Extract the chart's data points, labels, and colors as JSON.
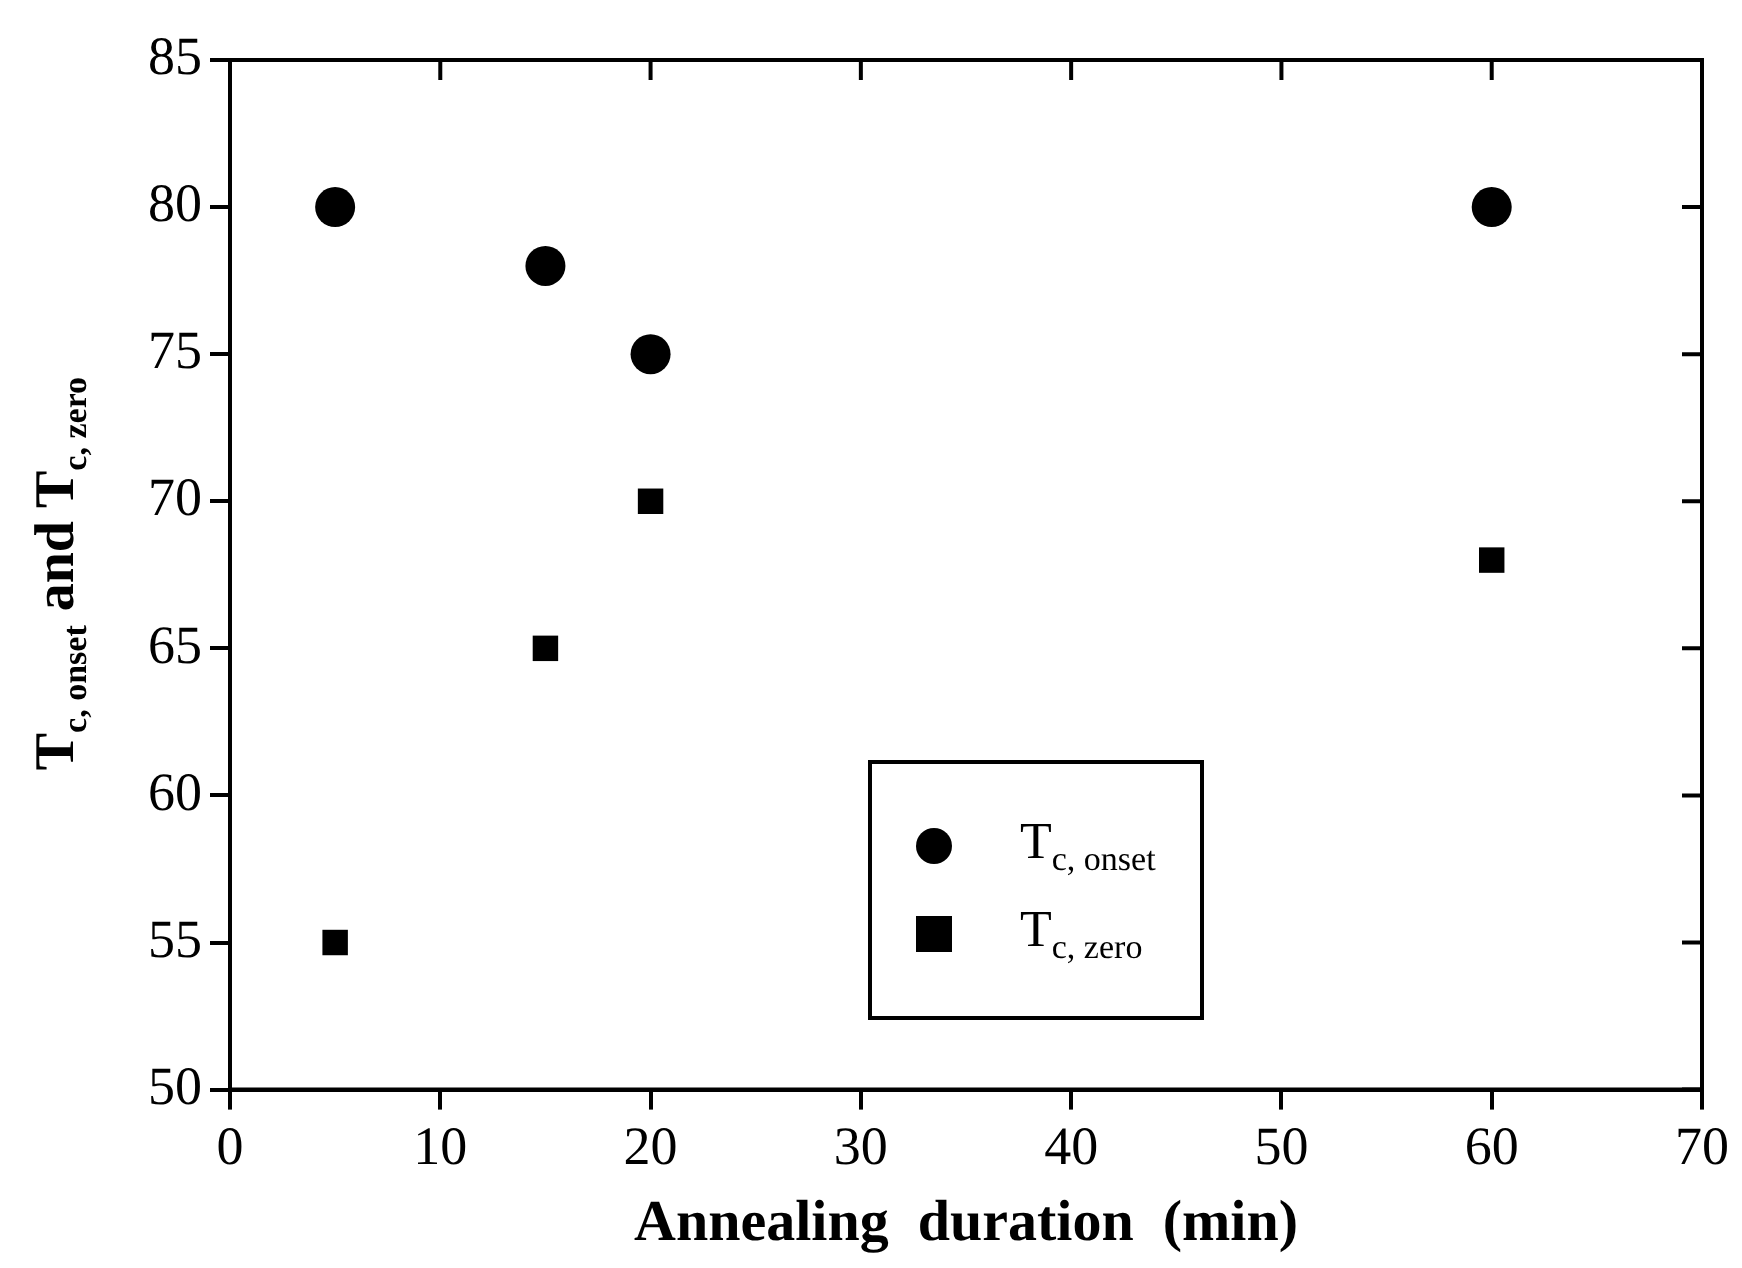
{
  "chart_data": {
    "type": "scatter",
    "xlabel": "Annealing  duration  (min)",
    "ylabel": "T$_{c, onset}$ and T$_{c, zero}$",
    "x": [
      5,
      15,
      20,
      60
    ],
    "series": [
      {
        "name": "T$_{c, onset}$",
        "color": "#000000",
        "marker": "circle",
        "values": [
          80,
          78,
          75,
          80
        ]
      },
      {
        "name": "T$_{c, zero}$",
        "color": "#000000",
        "marker": "square",
        "values": [
          55,
          65,
          70,
          68
        ]
      }
    ],
    "xlim": [
      0,
      70
    ],
    "xticks": [
      0,
      10,
      20,
      30,
      40,
      50,
      60,
      70
    ],
    "ylim": [
      50,
      85
    ],
    "yticks": [
      50,
      55,
      60,
      65,
      70,
      75,
      80,
      85
    ],
    "grid": false,
    "legend": "bottom"
  }
}
